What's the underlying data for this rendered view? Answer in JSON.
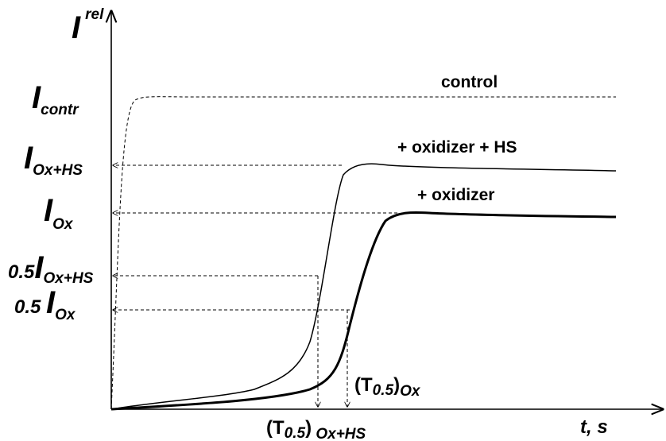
{
  "axes": {
    "y_label": {
      "main": "I",
      "sup": "rel"
    },
    "x_label": "t, s"
  },
  "levels": [
    {
      "main": "I",
      "sub": "contr"
    },
    {
      "main": "I",
      "sub": "Ox+HS"
    },
    {
      "main": "I",
      "sub": "Ox"
    },
    {
      "coef": "0.5",
      "main": "I",
      "sub": "Ox+HS"
    },
    {
      "coef": "0.5 ",
      "main": "I",
      "sub": "Ox"
    }
  ],
  "curves": [
    {
      "label": "control"
    },
    {
      "label": "+ oxidizer + HS"
    },
    {
      "label": "+ oxidizer"
    }
  ],
  "times": [
    {
      "open": "(T",
      "sub": "0.5",
      "close": ")",
      "tail": "Ox"
    },
    {
      "open": "(T",
      "sub": "0.5",
      "close": ")",
      "tail": " Ox+HS"
    }
  ]
}
